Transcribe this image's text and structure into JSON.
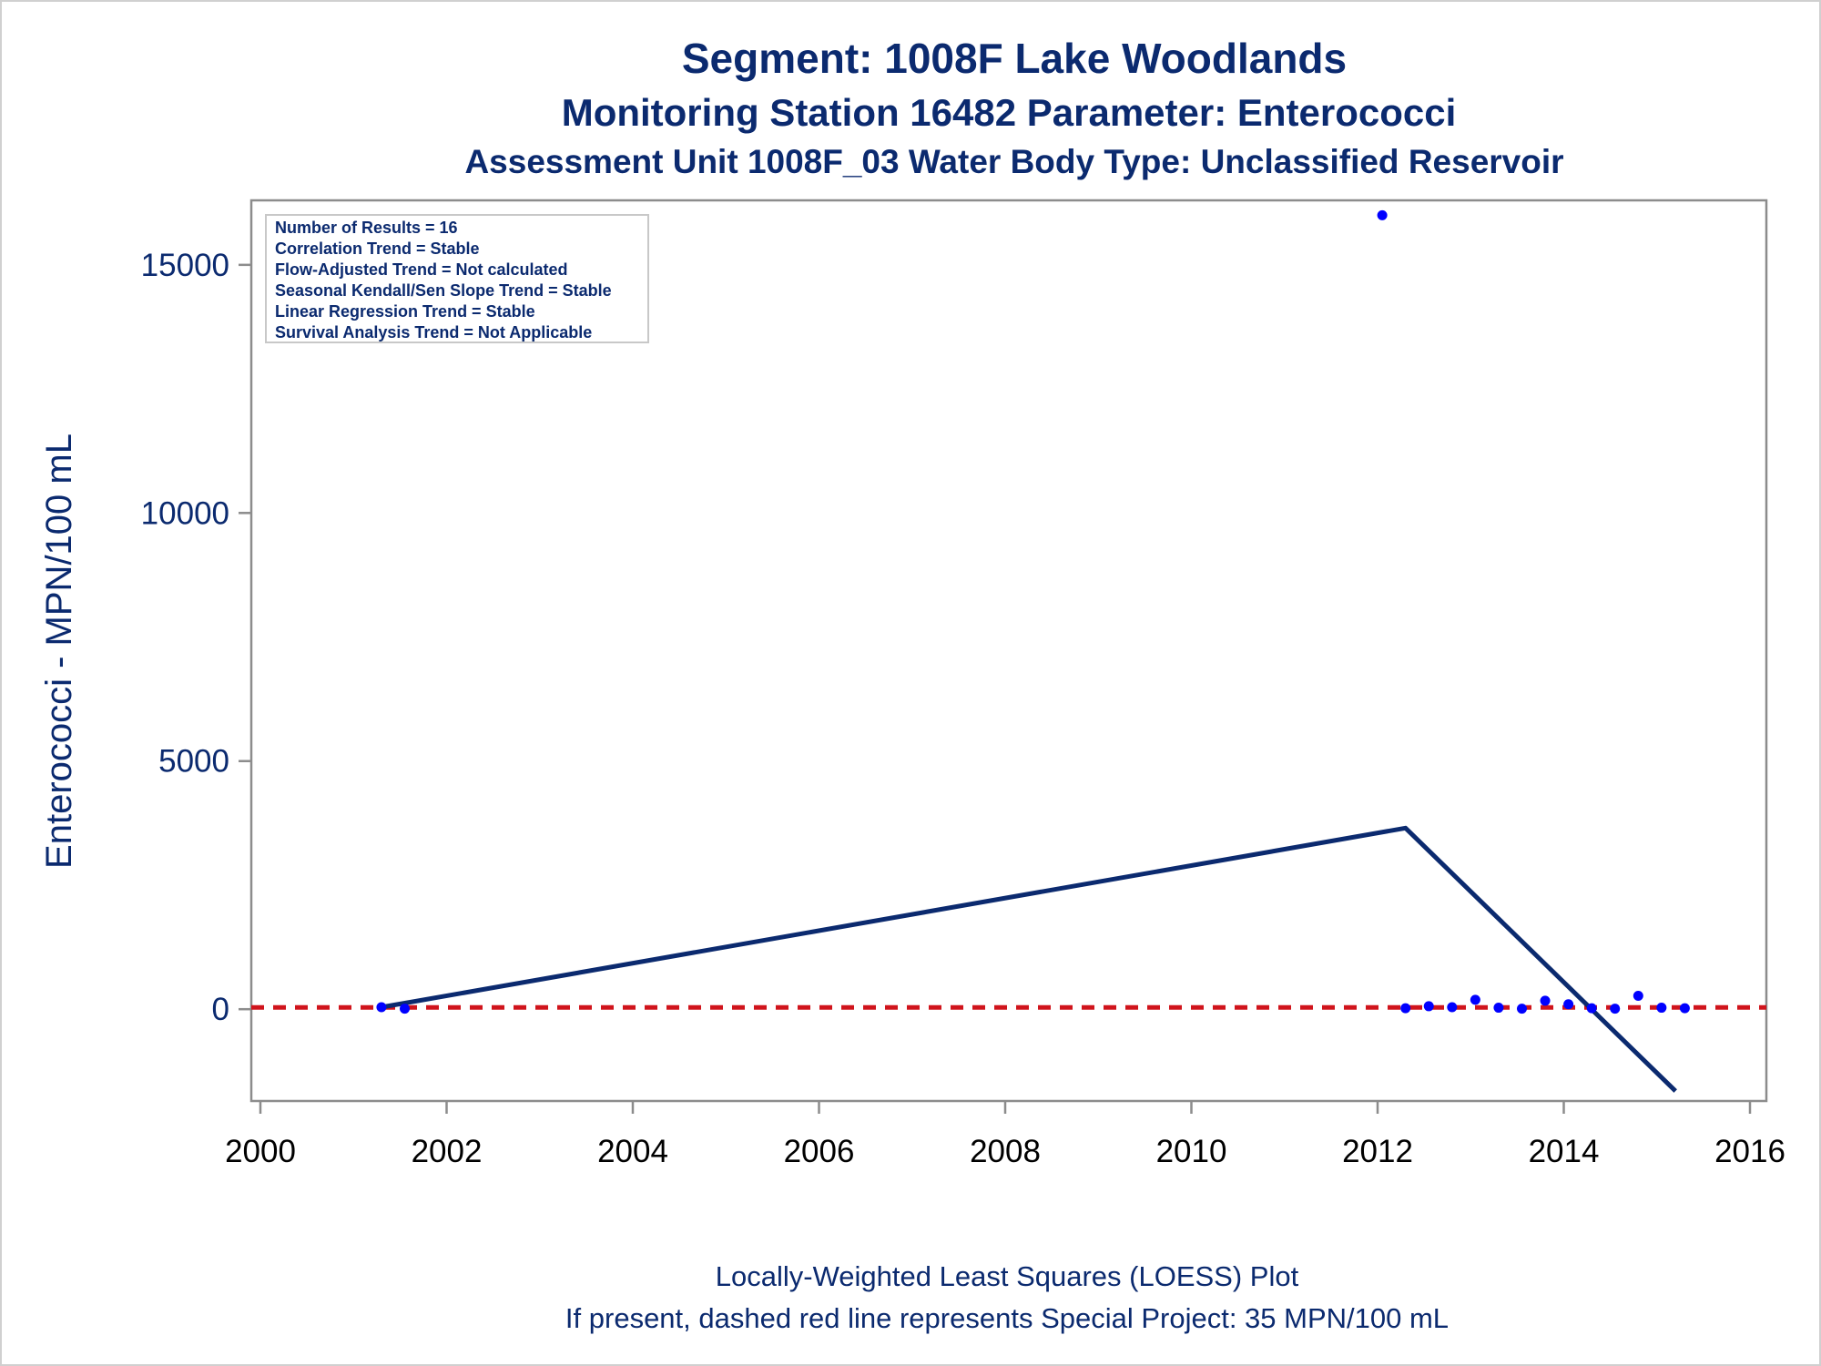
{
  "chart_data": {
    "type": "scatter",
    "title": "Segment: 1008F  Lake Woodlands",
    "subtitle": "Monitoring Station 16482 Parameter: Enterococci",
    "subtitle2": "Assessment Unit 1008F_03   Water Body Type: Unclassified Reservoir",
    "xlabel": "",
    "ylabel": "Enterococci - MPN/100 mL",
    "xlim": [
      2000,
      2016
    ],
    "ylim": [
      -1850,
      16300
    ],
    "x_ticks": [
      "2000",
      "2002",
      "2004",
      "2006",
      "2008",
      "2010",
      "2012",
      "2014",
      "2016"
    ],
    "y_ticks": [
      "0",
      "5000",
      "10000",
      "15000"
    ],
    "grid": false,
    "points": [
      {
        "x": 2001.3,
        "y": 40
      },
      {
        "x": 2001.55,
        "y": 10
      },
      {
        "x": 2012.05,
        "y": 16000
      },
      {
        "x": 2012.3,
        "y": 20
      },
      {
        "x": 2012.55,
        "y": 60
      },
      {
        "x": 2012.8,
        "y": 40
      },
      {
        "x": 2013.05,
        "y": 190
      },
      {
        "x": 2013.3,
        "y": 30
      },
      {
        "x": 2013.55,
        "y": 10
      },
      {
        "x": 2013.8,
        "y": 170
      },
      {
        "x": 2014.05,
        "y": 100
      },
      {
        "x": 2014.3,
        "y": 20
      },
      {
        "x": 2014.55,
        "y": 10
      },
      {
        "x": 2014.8,
        "y": 270
      },
      {
        "x": 2015.05,
        "y": 30
      },
      {
        "x": 2015.3,
        "y": 20
      }
    ],
    "loess_line": [
      {
        "x": 2001.3,
        "y": 40
      },
      {
        "x": 2012.3,
        "y": 3650
      },
      {
        "x": 2015.2,
        "y": -1650
      }
    ],
    "reference_line": {
      "y": 35
    },
    "colors": {
      "points": "#0000ff",
      "loess": "#0b2a6f",
      "reference": "#d0141c",
      "axes": "#8c8c8c",
      "text": "#0b2a6f"
    }
  },
  "stats_box": {
    "lines": [
      "Number of Results = 16",
      "Correlation Trend = Stable",
      "Flow-Adjusted Trend = Not calculated",
      "Seasonal Kendall/Sen Slope Trend = Stable",
      "Linear Regression Trend = Stable",
      "Survival Analysis Trend = Not Applicable"
    ]
  },
  "footer": {
    "line1": "Locally-Weighted Least Squares (LOESS) Plot",
    "line2": "If present, dashed red line represents Special Project: 35 MPN/100 mL"
  }
}
